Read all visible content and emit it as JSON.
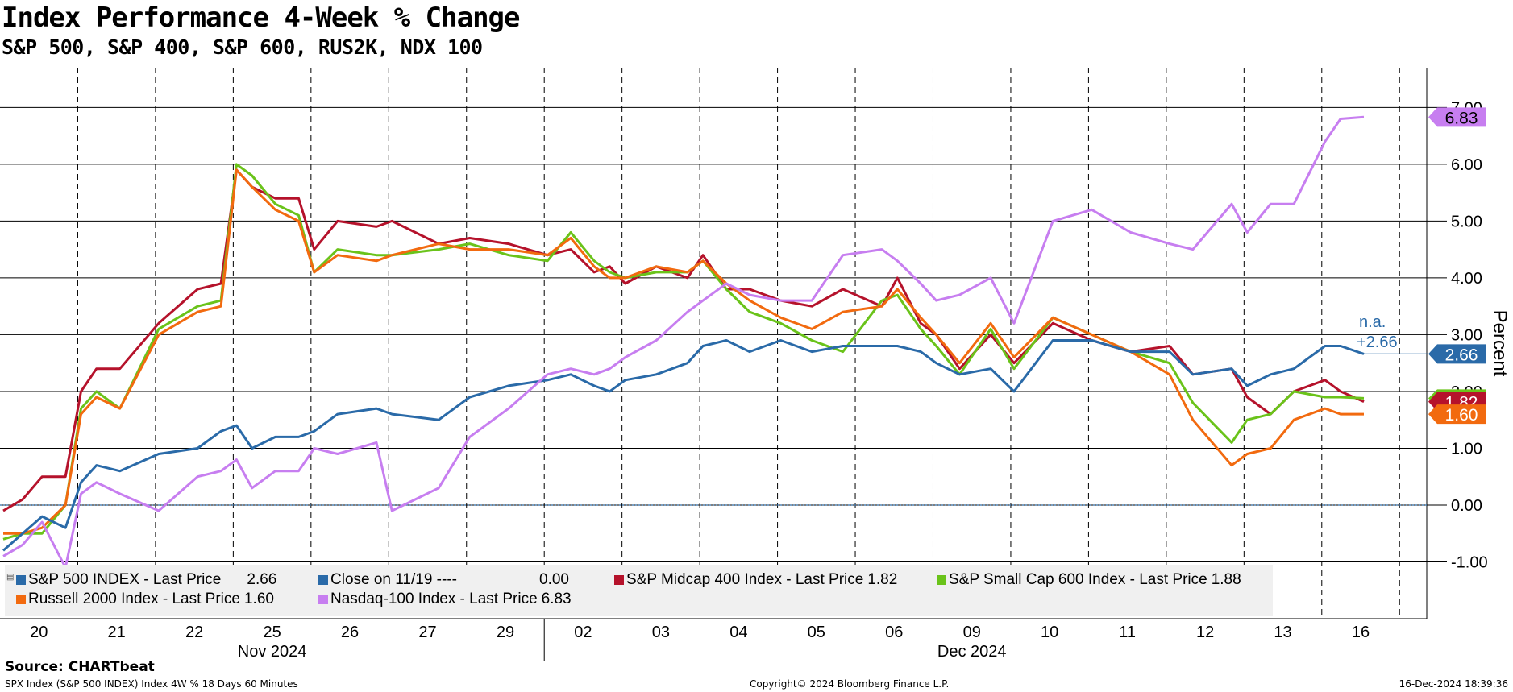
{
  "header": {
    "title": "Index Performance 4-Week % Change",
    "subtitle": "S&P 500, S&P 400, S&P 600, RUS2K, NDX 100"
  },
  "footer": {
    "source": "Source: CHARTbeat",
    "left_note": "SPX Index (S&P 500 INDEX) Index 4W % 18 Days 60 Minutes",
    "copyright": "Copyright© 2024 Bloomberg Finance L.P.",
    "timestamp": "16-Dec-2024 18:39:36"
  },
  "legend": {
    "items": [
      {
        "label": "S&P 500 INDEX - Last Price",
        "value": "2.66",
        "color": "#2a6aa8"
      },
      {
        "label": "Close on 11/19 ----",
        "value": "0.00",
        "color": "#2a6aa8"
      },
      {
        "label": "S&P Midcap 400 Index - Last Price",
        "value": "1.82",
        "color": "#b5122b"
      },
      {
        "label": "S&P Small Cap 600 Index - Last Price",
        "value": "1.88",
        "color": "#6ac31a"
      },
      {
        "label": "Russell 2000 Index - Last Price",
        "value": "1.60",
        "color": "#f26a0f"
      },
      {
        "label": "Nasdaq-100 Index - Last Price",
        "value": "6.83",
        "color": "#c77ef0"
      }
    ]
  },
  "annotation": {
    "na": "n.a.",
    "close_delta": "+2.66"
  },
  "chart_data": {
    "type": "line",
    "title": "Index Performance 4-Week % Change",
    "subtitle": "S&P 500, S&P 400, S&P 600, RUS2K, NDX 100",
    "ylabel": "Percent",
    "xlabel": "",
    "ylim": [
      -2.0,
      7.7
    ],
    "yticks": [
      "7.00",
      "6.00",
      "5.00",
      "4.00",
      "3.00",
      "2.00",
      "1.00",
      "0.00",
      "-1.00"
    ],
    "ytick_values": [
      7,
      6,
      5,
      4,
      3,
      2,
      1,
      0,
      -1
    ],
    "x_day_labels": [
      "20",
      "21",
      "22",
      "25",
      "26",
      "27",
      "29",
      "02",
      "03",
      "04",
      "05",
      "06",
      "09",
      "10",
      "11",
      "12",
      "13",
      "16"
    ],
    "month_labels": [
      "Nov 2024",
      "Dec 2024"
    ],
    "grid": true,
    "legend_position": "bottom-left",
    "reference_line": {
      "name": "Close on 11/19",
      "value": 0.0
    },
    "end_labels": [
      {
        "series": "Nasdaq-100 Index",
        "value": "6.83",
        "color": "#c77ef0"
      },
      {
        "series": "S&P 500 INDEX",
        "value": "2.66",
        "color": "#2a6aa8"
      },
      {
        "series": "S&P Midcap 400 Index",
        "value": "1.82",
        "color": "#b5122b"
      },
      {
        "series": "Russell 2000 Index",
        "value": "1.60",
        "color": "#f26a0f"
      }
    ],
    "series": [
      {
        "name": "S&P Midcap 400 Index",
        "color": "#b5122b",
        "points": [
          [
            0,
            -0.1
          ],
          [
            0.25,
            0.1
          ],
          [
            0.5,
            0.5
          ],
          [
            0.8,
            0.5
          ],
          [
            1.0,
            2.0
          ],
          [
            1.2,
            2.4
          ],
          [
            1.5,
            2.4
          ],
          [
            2.0,
            3.2
          ],
          [
            2.5,
            3.8
          ],
          [
            2.8,
            3.9
          ],
          [
            3.0,
            5.9
          ],
          [
            3.2,
            5.6
          ],
          [
            3.5,
            5.4
          ],
          [
            3.8,
            5.4
          ],
          [
            4.0,
            4.5
          ],
          [
            4.3,
            5.0
          ],
          [
            4.8,
            4.9
          ],
          [
            5.0,
            5.0
          ],
          [
            5.6,
            4.6
          ],
          [
            6.0,
            4.7
          ],
          [
            6.5,
            4.6
          ],
          [
            7.0,
            4.4
          ],
          [
            7.3,
            4.5
          ],
          [
            7.6,
            4.1
          ],
          [
            7.8,
            4.2
          ],
          [
            8.0,
            3.9
          ],
          [
            8.4,
            4.2
          ],
          [
            8.8,
            4.0
          ],
          [
            9.0,
            4.4
          ],
          [
            9.3,
            3.8
          ],
          [
            9.6,
            3.8
          ],
          [
            10.0,
            3.6
          ],
          [
            10.4,
            3.5
          ],
          [
            10.8,
            3.8
          ],
          [
            11.3,
            3.5
          ],
          [
            11.5,
            4.0
          ],
          [
            11.8,
            3.2
          ],
          [
            12.0,
            3.0
          ],
          [
            12.3,
            2.4
          ],
          [
            12.7,
            3.0
          ],
          [
            13.0,
            2.5
          ],
          [
            13.5,
            3.2
          ],
          [
            14.0,
            2.9
          ],
          [
            14.5,
            2.7
          ],
          [
            15.0,
            2.8
          ],
          [
            15.3,
            2.3
          ],
          [
            15.8,
            2.4
          ],
          [
            16.0,
            1.9
          ],
          [
            16.3,
            1.6
          ],
          [
            16.6,
            2.0
          ],
          [
            17.0,
            2.2
          ],
          [
            17.2,
            2.0
          ],
          [
            17.5,
            1.82
          ]
        ]
      },
      {
        "name": "S&P Small Cap 600 Index",
        "color": "#6ac31a",
        "points": [
          [
            0,
            -0.6
          ],
          [
            0.25,
            -0.5
          ],
          [
            0.5,
            -0.5
          ],
          [
            0.8,
            0.0
          ],
          [
            1.0,
            1.7
          ],
          [
            1.2,
            2.0
          ],
          [
            1.5,
            1.7
          ],
          [
            2.0,
            3.1
          ],
          [
            2.5,
            3.5
          ],
          [
            2.8,
            3.6
          ],
          [
            3.0,
            6.0
          ],
          [
            3.2,
            5.8
          ],
          [
            3.5,
            5.3
          ],
          [
            3.8,
            5.1
          ],
          [
            4.0,
            4.1
          ],
          [
            4.3,
            4.5
          ],
          [
            4.8,
            4.4
          ],
          [
            5.0,
            4.4
          ],
          [
            5.6,
            4.5
          ],
          [
            6.0,
            4.6
          ],
          [
            6.5,
            4.4
          ],
          [
            7.0,
            4.3
          ],
          [
            7.3,
            4.8
          ],
          [
            7.6,
            4.3
          ],
          [
            7.8,
            4.1
          ],
          [
            8.0,
            4.0
          ],
          [
            8.4,
            4.1
          ],
          [
            8.8,
            4.1
          ],
          [
            9.0,
            4.3
          ],
          [
            9.3,
            3.8
          ],
          [
            9.6,
            3.4
          ],
          [
            10.0,
            3.2
          ],
          [
            10.4,
            2.9
          ],
          [
            10.8,
            2.7
          ],
          [
            11.3,
            3.6
          ],
          [
            11.5,
            3.7
          ],
          [
            11.8,
            3.1
          ],
          [
            12.0,
            2.8
          ],
          [
            12.3,
            2.3
          ],
          [
            12.7,
            3.1
          ],
          [
            13.0,
            2.4
          ],
          [
            13.5,
            3.3
          ],
          [
            14.0,
            3.0
          ],
          [
            14.5,
            2.7
          ],
          [
            15.0,
            2.5
          ],
          [
            15.3,
            1.8
          ],
          [
            15.8,
            1.1
          ],
          [
            16.0,
            1.5
          ],
          [
            16.3,
            1.6
          ],
          [
            16.6,
            2.0
          ],
          [
            17.0,
            1.9
          ],
          [
            17.2,
            1.9
          ],
          [
            17.5,
            1.88
          ]
        ]
      },
      {
        "name": "Russell 2000 Index",
        "color": "#f26a0f",
        "points": [
          [
            0,
            -0.5
          ],
          [
            0.25,
            -0.5
          ],
          [
            0.5,
            -0.4
          ],
          [
            0.8,
            0.0
          ],
          [
            1.0,
            1.6
          ],
          [
            1.2,
            1.9
          ],
          [
            1.5,
            1.7
          ],
          [
            2.0,
            3.0
          ],
          [
            2.5,
            3.4
          ],
          [
            2.8,
            3.5
          ],
          [
            3.0,
            5.9
          ],
          [
            3.2,
            5.6
          ],
          [
            3.5,
            5.2
          ],
          [
            3.8,
            5.0
          ],
          [
            4.0,
            4.1
          ],
          [
            4.3,
            4.4
          ],
          [
            4.8,
            4.3
          ],
          [
            5.0,
            4.4
          ],
          [
            5.6,
            4.6
          ],
          [
            6.0,
            4.5
          ],
          [
            6.5,
            4.5
          ],
          [
            7.0,
            4.4
          ],
          [
            7.3,
            4.7
          ],
          [
            7.6,
            4.2
          ],
          [
            7.8,
            4.0
          ],
          [
            8.0,
            4.0
          ],
          [
            8.4,
            4.2
          ],
          [
            8.8,
            4.1
          ],
          [
            9.0,
            4.3
          ],
          [
            9.3,
            3.9
          ],
          [
            9.6,
            3.6
          ],
          [
            10.0,
            3.3
          ],
          [
            10.4,
            3.1
          ],
          [
            10.8,
            3.4
          ],
          [
            11.3,
            3.5
          ],
          [
            11.5,
            3.8
          ],
          [
            11.8,
            3.3
          ],
          [
            12.0,
            3.0
          ],
          [
            12.3,
            2.5
          ],
          [
            12.7,
            3.2
          ],
          [
            13.0,
            2.6
          ],
          [
            13.5,
            3.3
          ],
          [
            14.0,
            3.0
          ],
          [
            14.5,
            2.7
          ],
          [
            15.0,
            2.3
          ],
          [
            15.3,
            1.5
          ],
          [
            15.8,
            0.7
          ],
          [
            16.0,
            0.9
          ],
          [
            16.3,
            1.0
          ],
          [
            16.6,
            1.5
          ],
          [
            17.0,
            1.7
          ],
          [
            17.2,
            1.6
          ],
          [
            17.5,
            1.6
          ]
        ]
      },
      {
        "name": "S&P 500 INDEX",
        "color": "#2a6aa8",
        "points": [
          [
            0,
            -0.8
          ],
          [
            0.25,
            -0.5
          ],
          [
            0.5,
            -0.2
          ],
          [
            0.8,
            -0.4
          ],
          [
            1.0,
            0.4
          ],
          [
            1.2,
            0.7
          ],
          [
            1.5,
            0.6
          ],
          [
            2.0,
            0.9
          ],
          [
            2.5,
            1.0
          ],
          [
            2.8,
            1.3
          ],
          [
            3.0,
            1.4
          ],
          [
            3.2,
            1.0
          ],
          [
            3.5,
            1.2
          ],
          [
            3.8,
            1.2
          ],
          [
            4.0,
            1.3
          ],
          [
            4.3,
            1.6
          ],
          [
            4.8,
            1.7
          ],
          [
            5.0,
            1.6
          ],
          [
            5.6,
            1.5
          ],
          [
            6.0,
            1.9
          ],
          [
            6.5,
            2.1
          ],
          [
            7.0,
            2.2
          ],
          [
            7.3,
            2.3
          ],
          [
            7.6,
            2.1
          ],
          [
            7.8,
            2.0
          ],
          [
            8.0,
            2.2
          ],
          [
            8.4,
            2.3
          ],
          [
            8.8,
            2.5
          ],
          [
            9.0,
            2.8
          ],
          [
            9.3,
            2.9
          ],
          [
            9.6,
            2.7
          ],
          [
            10.0,
            2.9
          ],
          [
            10.4,
            2.7
          ],
          [
            10.8,
            2.8
          ],
          [
            11.3,
            2.8
          ],
          [
            11.5,
            2.8
          ],
          [
            11.8,
            2.7
          ],
          [
            12.0,
            2.5
          ],
          [
            12.3,
            2.3
          ],
          [
            12.7,
            2.4
          ],
          [
            13.0,
            2.0
          ],
          [
            13.5,
            2.9
          ],
          [
            14.0,
            2.9
          ],
          [
            14.5,
            2.7
          ],
          [
            15.0,
            2.7
          ],
          [
            15.3,
            2.3
          ],
          [
            15.8,
            2.4
          ],
          [
            16.0,
            2.1
          ],
          [
            16.3,
            2.3
          ],
          [
            16.6,
            2.4
          ],
          [
            17.0,
            2.8
          ],
          [
            17.2,
            2.8
          ],
          [
            17.5,
            2.66
          ]
        ]
      },
      {
        "name": "Nasdaq-100 Index",
        "color": "#c77ef0",
        "points": [
          [
            0,
            -0.9
          ],
          [
            0.25,
            -0.7
          ],
          [
            0.5,
            -0.3
          ],
          [
            0.8,
            -1.1
          ],
          [
            1.0,
            0.2
          ],
          [
            1.2,
            0.4
          ],
          [
            1.5,
            0.2
          ],
          [
            2.0,
            -0.1
          ],
          [
            2.5,
            0.5
          ],
          [
            2.8,
            0.6
          ],
          [
            3.0,
            0.8
          ],
          [
            3.2,
            0.3
          ],
          [
            3.5,
            0.6
          ],
          [
            3.8,
            0.6
          ],
          [
            4.0,
            1.0
          ],
          [
            4.3,
            0.9
          ],
          [
            4.8,
            1.1
          ],
          [
            5.0,
            -0.1
          ],
          [
            5.6,
            0.3
          ],
          [
            6.0,
            1.2
          ],
          [
            6.5,
            1.7
          ],
          [
            7.0,
            2.3
          ],
          [
            7.3,
            2.4
          ],
          [
            7.6,
            2.3
          ],
          [
            7.8,
            2.4
          ],
          [
            8.0,
            2.6
          ],
          [
            8.4,
            2.9
          ],
          [
            8.8,
            3.4
          ],
          [
            9.0,
            3.6
          ],
          [
            9.3,
            3.9
          ],
          [
            9.6,
            3.7
          ],
          [
            10.0,
            3.6
          ],
          [
            10.4,
            3.6
          ],
          [
            10.8,
            4.4
          ],
          [
            11.3,
            4.5
          ],
          [
            11.5,
            4.3
          ],
          [
            11.8,
            3.9
          ],
          [
            12.0,
            3.6
          ],
          [
            12.3,
            3.7
          ],
          [
            12.7,
            4.0
          ],
          [
            13.0,
            3.2
          ],
          [
            13.5,
            5.0
          ],
          [
            14.0,
            5.2
          ],
          [
            14.5,
            4.8
          ],
          [
            15.0,
            4.6
          ],
          [
            15.3,
            4.5
          ],
          [
            15.8,
            5.3
          ],
          [
            16.0,
            4.8
          ],
          [
            16.3,
            5.3
          ],
          [
            16.6,
            5.3
          ],
          [
            17.0,
            6.4
          ],
          [
            17.2,
            6.8
          ],
          [
            17.5,
            6.83
          ]
        ]
      }
    ]
  }
}
